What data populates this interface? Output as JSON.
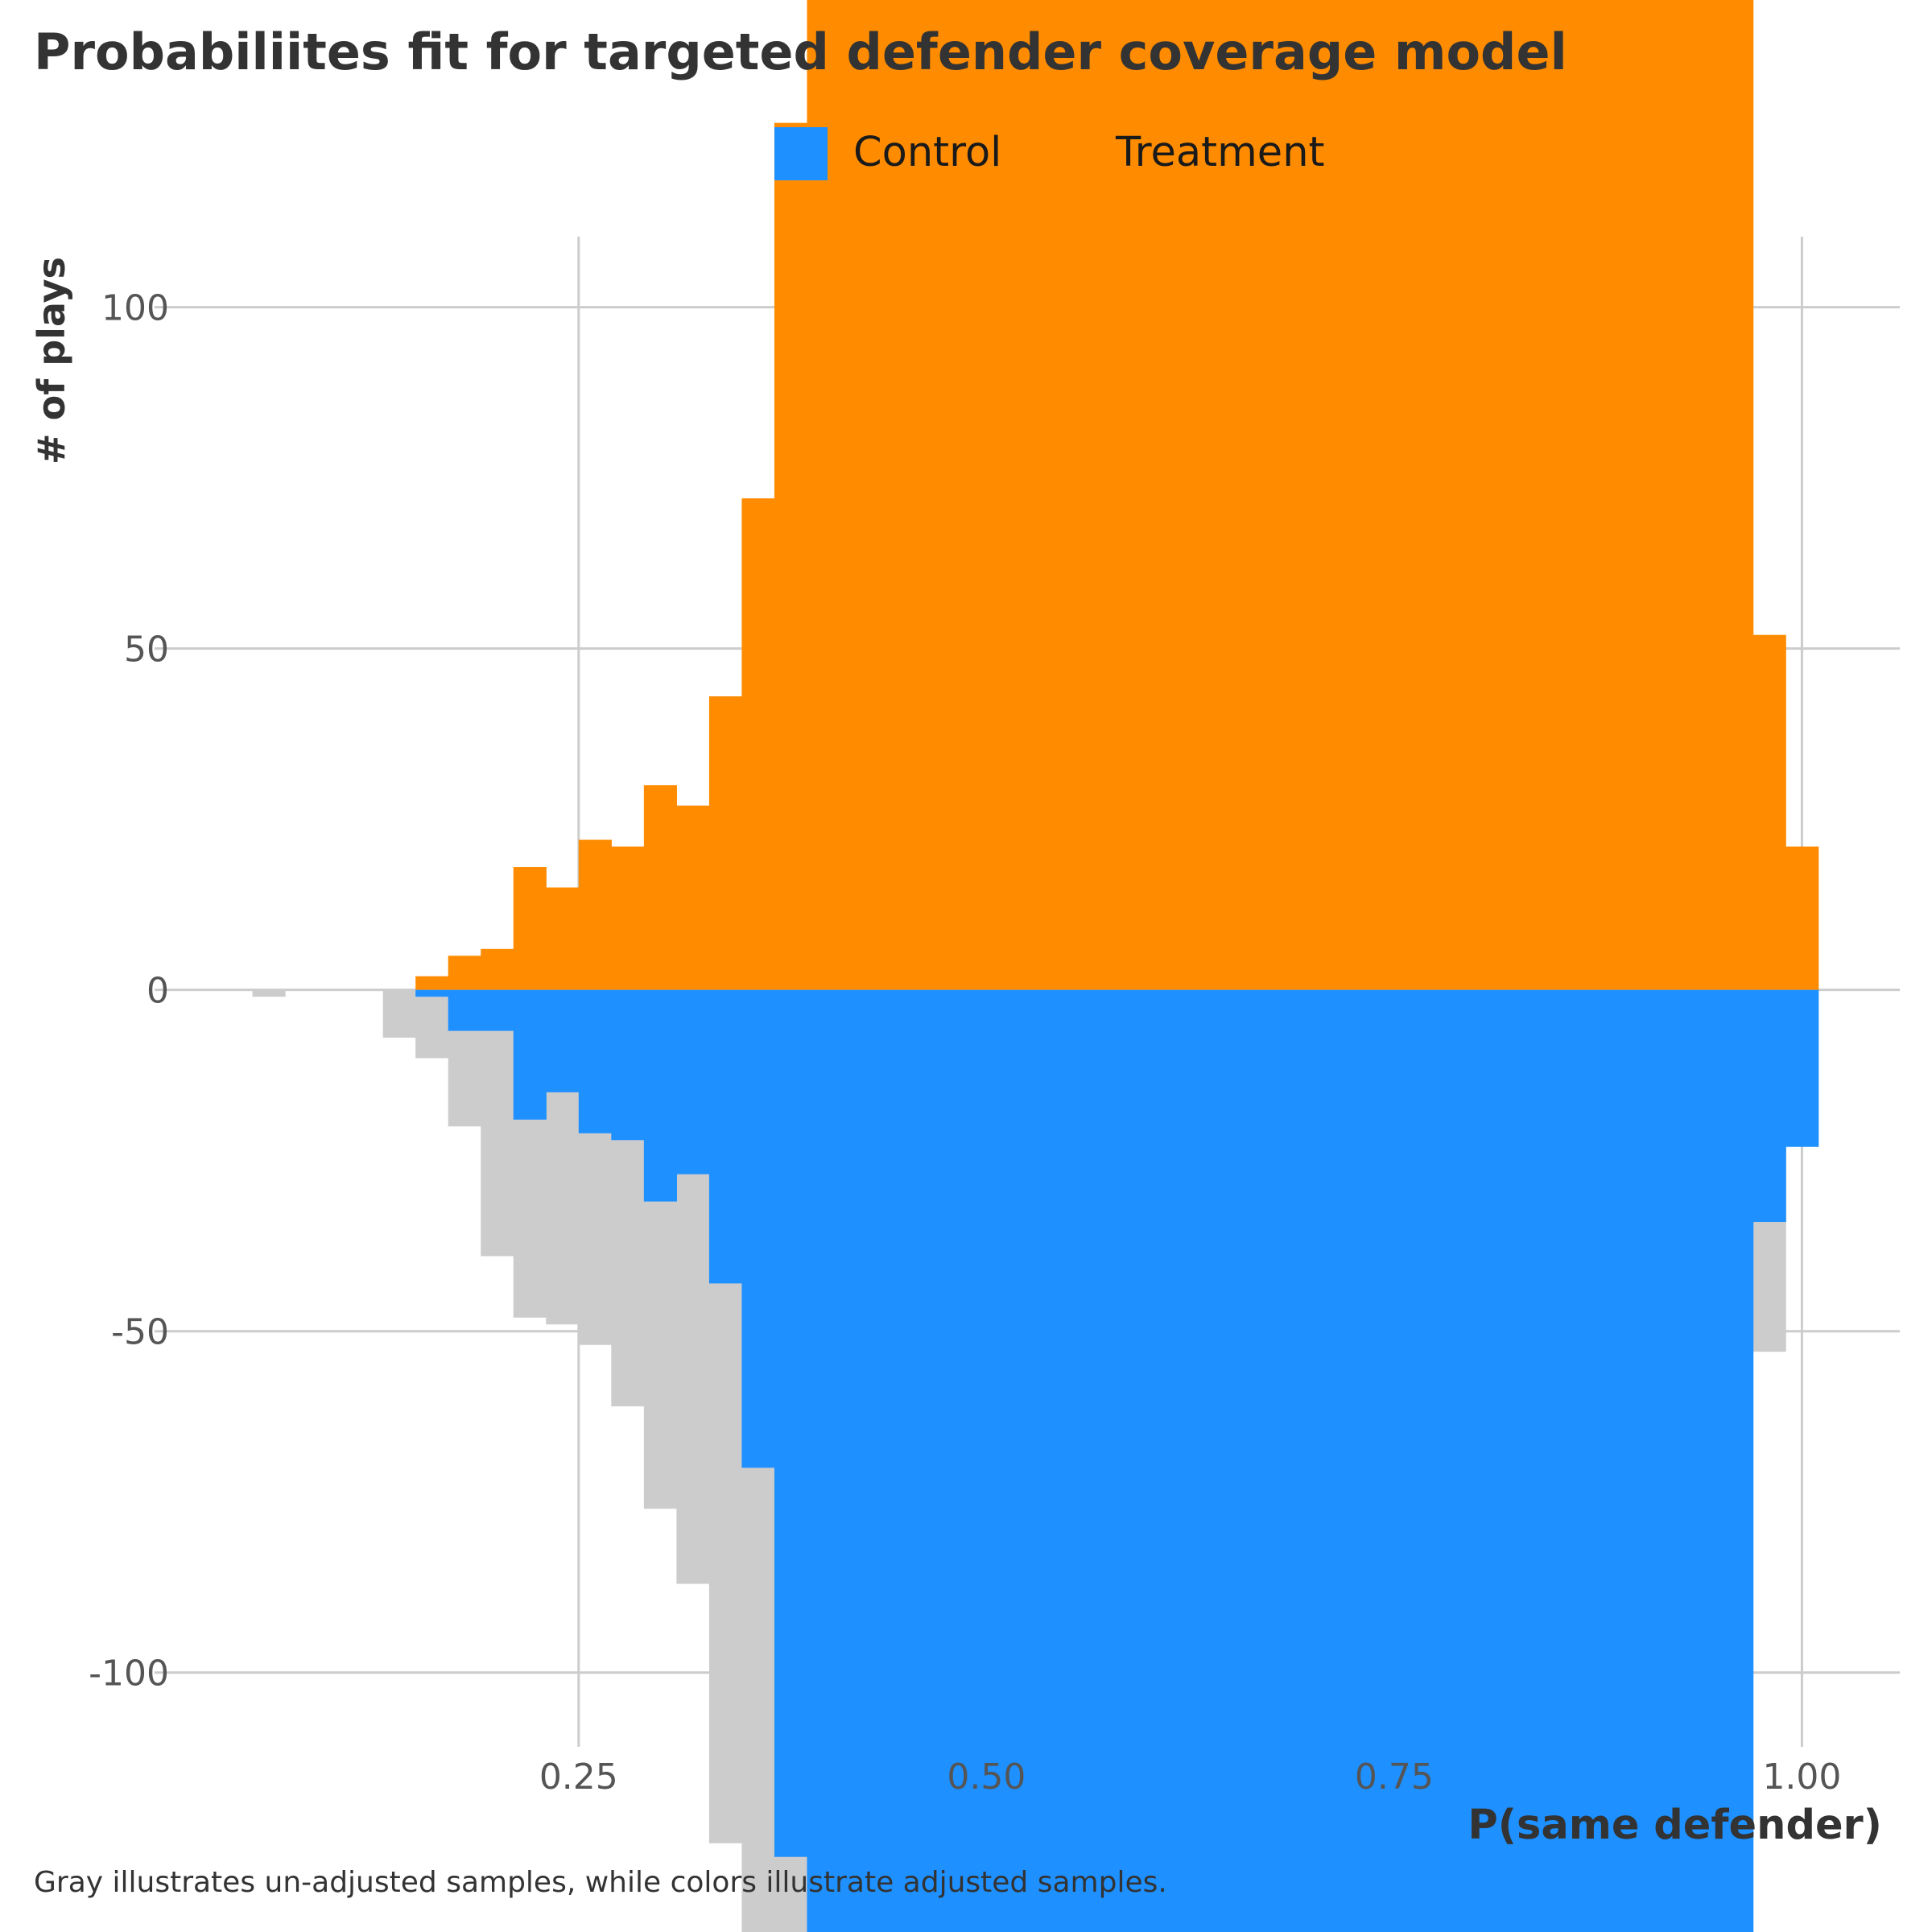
{
  "chart_data": {
    "type": "bar",
    "title": "Probabiliites fit for targeted defender coverage model",
    "xlabel": "P(same defender)",
    "ylabel": "# of plays",
    "caption": "Gray illustrates un-adjusted samples, while colors illustrate adjusted samples.",
    "bin_width": 0.02,
    "xlim": [
      -0.01,
      1.06
    ],
    "ylim": [
      -138,
      145
    ],
    "x_ticks": [
      0.25,
      0.5,
      0.75,
      1.0
    ],
    "x_tick_labels": [
      "0.25",
      "0.50",
      "0.75",
      "1.00"
    ],
    "y_ticks": [
      -100,
      -50,
      0,
      50,
      100
    ],
    "y_tick_labels": [
      "-100",
      "-50",
      "0",
      "50",
      "100"
    ],
    "grid": true,
    "legend_position": "top",
    "legend": [
      {
        "label": "Control",
        "color": "#1E90FF"
      },
      {
        "label": "Treatment",
        "color": "#FF8C00"
      }
    ],
    "colors": {
      "control": "#1E90FF",
      "treatment": "#FF8C00",
      "unadjusted": "#CCCCCC",
      "grid": "#CCCCCC"
    },
    "series": [
      {
        "name": "Treatment",
        "x": [
          0.16,
          0.18,
          0.2,
          0.22,
          0.24,
          0.26,
          0.28,
          0.3,
          0.32,
          0.34,
          0.36,
          0.38,
          0.4,
          0.42,
          0.44,
          0.46,
          0.48,
          0.5,
          0.52,
          0.54,
          0.56,
          0.58,
          0.6,
          0.62,
          0.64,
          0.66,
          0.68,
          0.7,
          0.72,
          0.74,
          0.76,
          0.78,
          0.8,
          0.82,
          0.84,
          0.86,
          0.88,
          0.9,
          0.92,
          0.94,
          0.96,
          0.98,
          1.0
        ],
        "values": [
          2,
          5,
          6,
          18,
          15,
          22,
          21,
          30,
          27,
          43,
          72,
          127,
          150,
          150,
          150,
          150,
          150,
          150,
          150,
          150,
          150,
          150,
          150,
          150,
          150,
          150,
          150,
          150,
          150,
          150,
          150,
          150,
          150,
          150,
          150,
          150,
          150,
          150,
          150,
          150,
          150,
          52,
          21
        ]
      },
      {
        "name": "Control",
        "x": [
          0.16,
          0.18,
          0.2,
          0.22,
          0.24,
          0.26,
          0.28,
          0.3,
          0.32,
          0.34,
          0.36,
          0.38,
          0.4,
          0.42,
          0.44,
          0.46,
          0.48,
          0.5,
          0.52,
          0.54,
          0.56,
          0.58,
          0.6,
          0.62,
          0.64,
          0.66,
          0.68,
          0.7,
          0.72,
          0.74,
          0.76,
          0.78,
          0.8,
          0.82,
          0.84,
          0.86,
          0.88,
          0.9,
          0.92,
          0.94,
          0.96,
          0.98,
          1.0
        ],
        "values": [
          -1,
          -6,
          -6,
          -19,
          -15,
          -21,
          -22,
          -31,
          -27,
          -43,
          -70,
          -127,
          -150,
          -150,
          -150,
          -150,
          -150,
          -150,
          -150,
          -150,
          -150,
          -150,
          -150,
          -150,
          -150,
          -150,
          -150,
          -150,
          -150,
          -150,
          -150,
          -150,
          -150,
          -150,
          -150,
          -150,
          -150,
          -150,
          -150,
          -150,
          -150,
          -34,
          -23
        ]
      },
      {
        "x": [
          0.06,
          0.14,
          0.16,
          0.18,
          0.2,
          0.22,
          0.24,
          0.26,
          0.28,
          0.3,
          0.32,
          0.34,
          0.36,
          0.38,
          0.98
        ],
        "values": [
          -1,
          -7,
          -10,
          -20,
          -39,
          -48,
          -49,
          -52,
          -61,
          -76,
          -87,
          -125,
          -150,
          -150,
          -53
        ]
      }
    ]
  }
}
